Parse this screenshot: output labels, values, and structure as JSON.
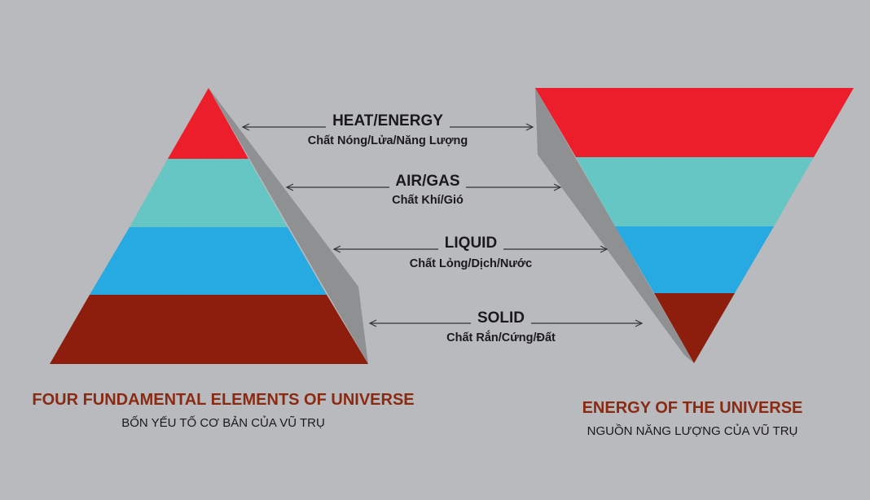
{
  "colors": {
    "background": "#b9babd",
    "heat": "#ec1e2b",
    "air": "#66c6c3",
    "liquid": "#27a9e1",
    "solid": "#8d1d0c",
    "side_shadow": "#8f9092",
    "arrow": "#333333",
    "caption": "#8b2a12"
  },
  "layers": [
    {
      "key": "heat",
      "title": "HEAT/ENERGY",
      "subtitle": "Chất Nóng/Lửa/Năng Lượng"
    },
    {
      "key": "air",
      "title": "AIR/GAS",
      "subtitle": "Chất Khí/Gió"
    },
    {
      "key": "liquid",
      "title": "LIQUID",
      "subtitle": "Chất Lỏng/Dịch/Nước"
    },
    {
      "key": "solid",
      "title": "SOLID",
      "subtitle": "Chất Rắn/Cứng/Đất"
    }
  ],
  "left_caption": {
    "title": "FOUR FUNDAMENTAL ELEMENTS OF UNIVERSE",
    "subtitle": "BỐN YẾU TỐ CƠ BẢN CỦA VŨ TRỤ"
  },
  "right_caption": {
    "title": "ENERGY OF THE UNIVERSE",
    "subtitle": "NGUỒN NĂNG LƯỢNG CỦA VŨ TRỤ"
  }
}
